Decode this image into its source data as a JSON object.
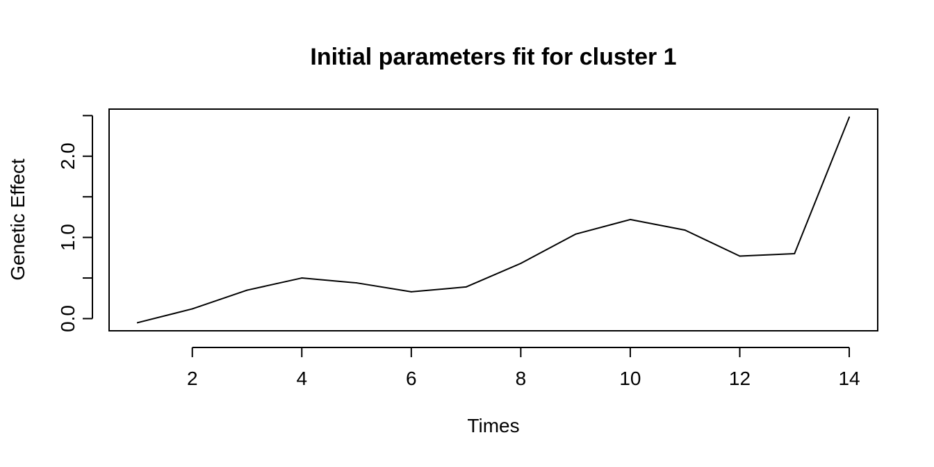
{
  "chart_data": {
    "type": "line",
    "title": "Initial parameters fit for cluster 1",
    "xlabel": "Times",
    "ylabel": "Genetic Effect",
    "x": [
      1,
      2,
      3,
      4,
      5,
      6,
      7,
      8,
      9,
      10,
      11,
      12,
      13,
      14
    ],
    "series": [
      {
        "values": [
          -0.05,
          0.12,
          0.35,
          0.5,
          0.44,
          0.33,
          0.39,
          0.68,
          1.04,
          1.22,
          1.09,
          0.77,
          0.8,
          2.48
        ]
      }
    ],
    "xlim": [
      0.48,
      14.52
    ],
    "ylim": [
      -0.15,
      2.58
    ],
    "xticks": [
      2,
      4,
      6,
      8,
      10,
      12,
      14
    ],
    "xtick_labels": [
      "2",
      "4",
      "6",
      "8",
      "10",
      "12",
      "14"
    ],
    "yticks": [
      0.0,
      0.5,
      1.0,
      1.5,
      2.0,
      2.5
    ],
    "ytick_labels": [
      "0.0",
      "",
      "1.0",
      "",
      "2.0",
      ""
    ],
    "grid": false,
    "legend": "none",
    "line_color": "#000000"
  }
}
